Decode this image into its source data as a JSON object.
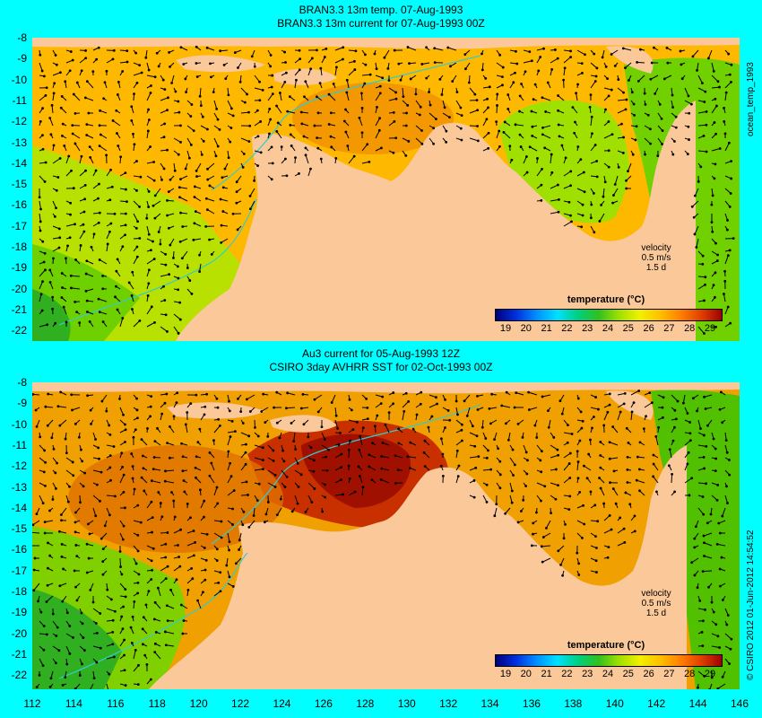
{
  "top_panel": {
    "title_line1": "BRAN3.3 13m temp. 07-Aug-1993",
    "title_line2": "BRAN3.3 13m current for 07-Aug-1993 00Z",
    "side_label": "ocean_temp_1993",
    "colorbar_title": "temperature (°C)",
    "velocity_label": "velocity",
    "velocity_scale": "0.5 m/s",
    "velocity_time": "1.5 d"
  },
  "bottom_panel": {
    "title_line1": "Au3 current for 05-Aug-1993 12Z",
    "title_line2": "CSIRO 3day AVHRR SST for 02-Oct-1993 00Z",
    "side_label": "© CSIRO 2012  01-Jun-2012 14:54:52",
    "colorbar_title": "temperature (°C)",
    "velocity_label": "velocity",
    "velocity_scale": "0.5 m/s",
    "velocity_time": "1.5 d"
  },
  "colorbar_ticks": [
    "19",
    "20",
    "21",
    "22",
    "23",
    "24",
    "25",
    "26",
    "27",
    "28",
    "29"
  ],
  "latitude_ticks": [
    "-8",
    "-9",
    "-10",
    "-11",
    "-12",
    "-13",
    "-14",
    "-15",
    "-16",
    "-17",
    "-18",
    "-19",
    "-20",
    "-21",
    "-22"
  ],
  "longitude_ticks": [
    "112",
    "114",
    "116",
    "118",
    "120",
    "122",
    "124",
    "126",
    "128",
    "130",
    "132",
    "134",
    "136",
    "138",
    "140",
    "142",
    "144",
    "146"
  ],
  "colors": {
    "background": "#00ffff",
    "land": "#fbc89a",
    "coast_contour": "#33cccc",
    "arrow": "#000000"
  }
}
